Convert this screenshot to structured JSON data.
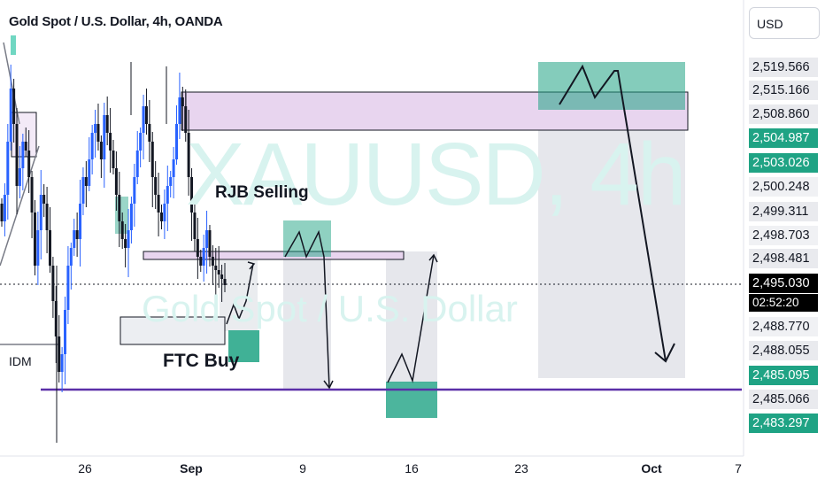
{
  "header": {
    "title": "Gold Spot / U.S. Dollar, 4h, OANDA",
    "currency": "USD"
  },
  "watermark": {
    "symbol": "XAUUSD, 4h",
    "description": "Gold Spot / U.S. Dollar"
  },
  "price_axis": {
    "labels": [
      {
        "text": "2,519.566",
        "style": "plain"
      },
      {
        "text": "2,515.166",
        "style": "plain"
      },
      {
        "text": "2,508.860",
        "style": "plain"
      },
      {
        "text": "2,504.987",
        "style": "green"
      },
      {
        "text": "2,503.026",
        "style": "green"
      },
      {
        "text": "2,500.248",
        "style": "light"
      },
      {
        "text": "2,499.311",
        "style": "plain"
      },
      {
        "text": "2,498.703",
        "style": "light"
      },
      {
        "text": "2,498.481",
        "style": "plain"
      },
      {
        "text": "2,495.030",
        "style": "current"
      },
      {
        "text": "2,488.770",
        "style": "light"
      },
      {
        "text": "2,488.055",
        "style": "plain"
      },
      {
        "text": "2,485.095",
        "style": "green"
      },
      {
        "text": "2,485.066",
        "style": "plain"
      },
      {
        "text": "2,483.297",
        "style": "green"
      }
    ],
    "countdown": "02:52:20"
  },
  "time_axis": [
    {
      "text": "26",
      "bold": false
    },
    {
      "text": "Sep",
      "bold": true
    },
    {
      "text": "9",
      "bold": false
    },
    {
      "text": "16",
      "bold": false
    },
    {
      "text": "23",
      "bold": false
    },
    {
      "text": "Oct",
      "bold": true
    },
    {
      "text": "7",
      "bold": false
    }
  ],
  "annotations": {
    "rjb": "RJB Selling",
    "ftc": "FTC Buy",
    "idm": "IDM"
  },
  "colors": {
    "up": "#2962ff",
    "down": "#131722",
    "zone_green": "#1fa384",
    "zone_pink": "#e8d5ef",
    "zone_grey": "#d1d4dc",
    "support_line": "#5b2fa8"
  },
  "chart_data": {
    "type": "candlestick",
    "symbol": "XAUUSD",
    "timeframe": "4h",
    "exchange": "OANDA",
    "current_price": 2495.03,
    "support_price": 2485.066,
    "x_ticks": [
      "26",
      "Sep",
      "9",
      "16",
      "23",
      "Oct",
      "7"
    ],
    "y_ticks": [
      2519.566,
      2515.166,
      2508.86,
      2504.987,
      2503.026,
      2500.248,
      2499.311,
      2498.703,
      2498.481,
      2495.03,
      2488.77,
      2488.055,
      2485.095,
      2485.066,
      2483.297
    ]
  }
}
